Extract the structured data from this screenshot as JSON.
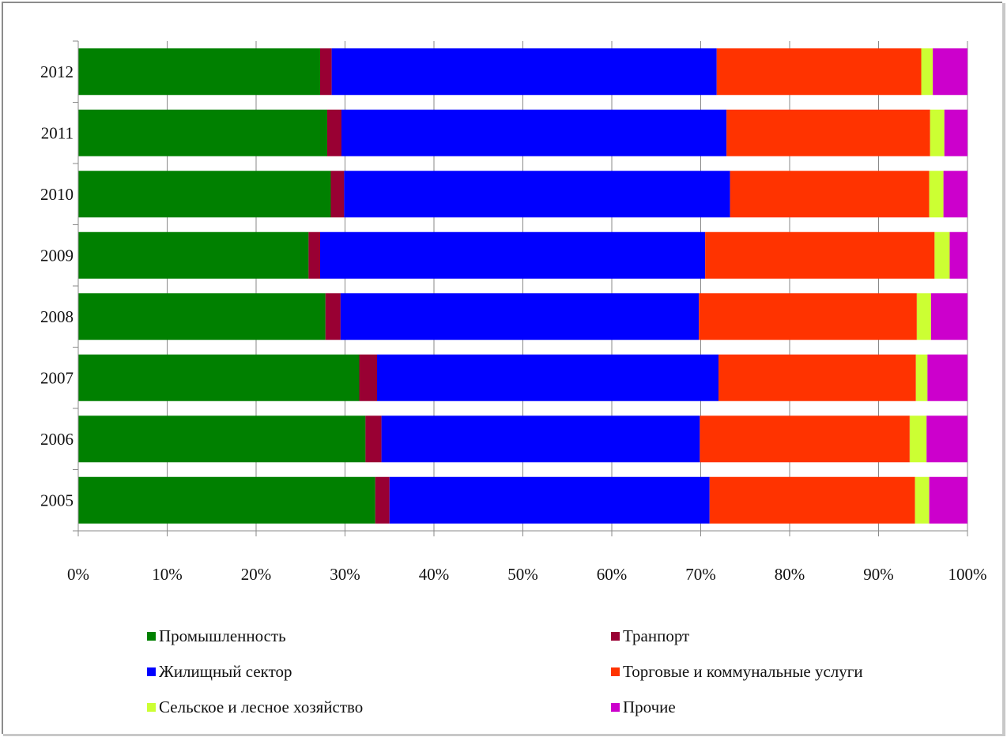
{
  "chart_data": {
    "type": "bar",
    "orientation": "horizontal",
    "stacked": "percent",
    "title": "",
    "xlabel": "",
    "ylabel": "",
    "xlim": [
      0,
      100
    ],
    "x_ticks": [
      "0%",
      "10%",
      "20%",
      "30%",
      "40%",
      "50%",
      "60%",
      "70%",
      "80%",
      "90%",
      "100%"
    ],
    "categories": [
      "2012",
      "2011",
      "2010",
      "2009",
      "2008",
      "2007",
      "2006",
      "2005"
    ],
    "grid": "vertical",
    "legend_position": "bottom",
    "series": [
      {
        "name": "Промышленность",
        "color": "#008000",
        "values": [
          27.2,
          28.0,
          28.4,
          25.9,
          27.8,
          31.6,
          32.3,
          33.4
        ]
      },
      {
        "name": "Транпорт",
        "color": "#990033",
        "values": [
          1.3,
          1.6,
          1.5,
          1.3,
          1.7,
          2.0,
          1.8,
          1.6
        ]
      },
      {
        "name": "Жилищный сектор",
        "color": "#0000ff",
        "values": [
          43.3,
          43.3,
          43.4,
          43.3,
          40.3,
          38.4,
          35.8,
          36.0
        ]
      },
      {
        "name": "Торговые и коммунальные услуги",
        "color": "#ff3300",
        "values": [
          23.0,
          22.9,
          22.4,
          25.8,
          24.5,
          22.2,
          23.6,
          23.1
        ]
      },
      {
        "name": "Сельское и лесное хозяйство",
        "color": "#ccff33",
        "values": [
          1.3,
          1.6,
          1.6,
          1.7,
          1.6,
          1.3,
          1.9,
          1.6
        ]
      },
      {
        "name": "Прочие",
        "color": "#cc00cc",
        "values": [
          3.9,
          2.6,
          2.7,
          2.0,
          4.1,
          4.5,
          4.6,
          4.3
        ]
      }
    ]
  }
}
